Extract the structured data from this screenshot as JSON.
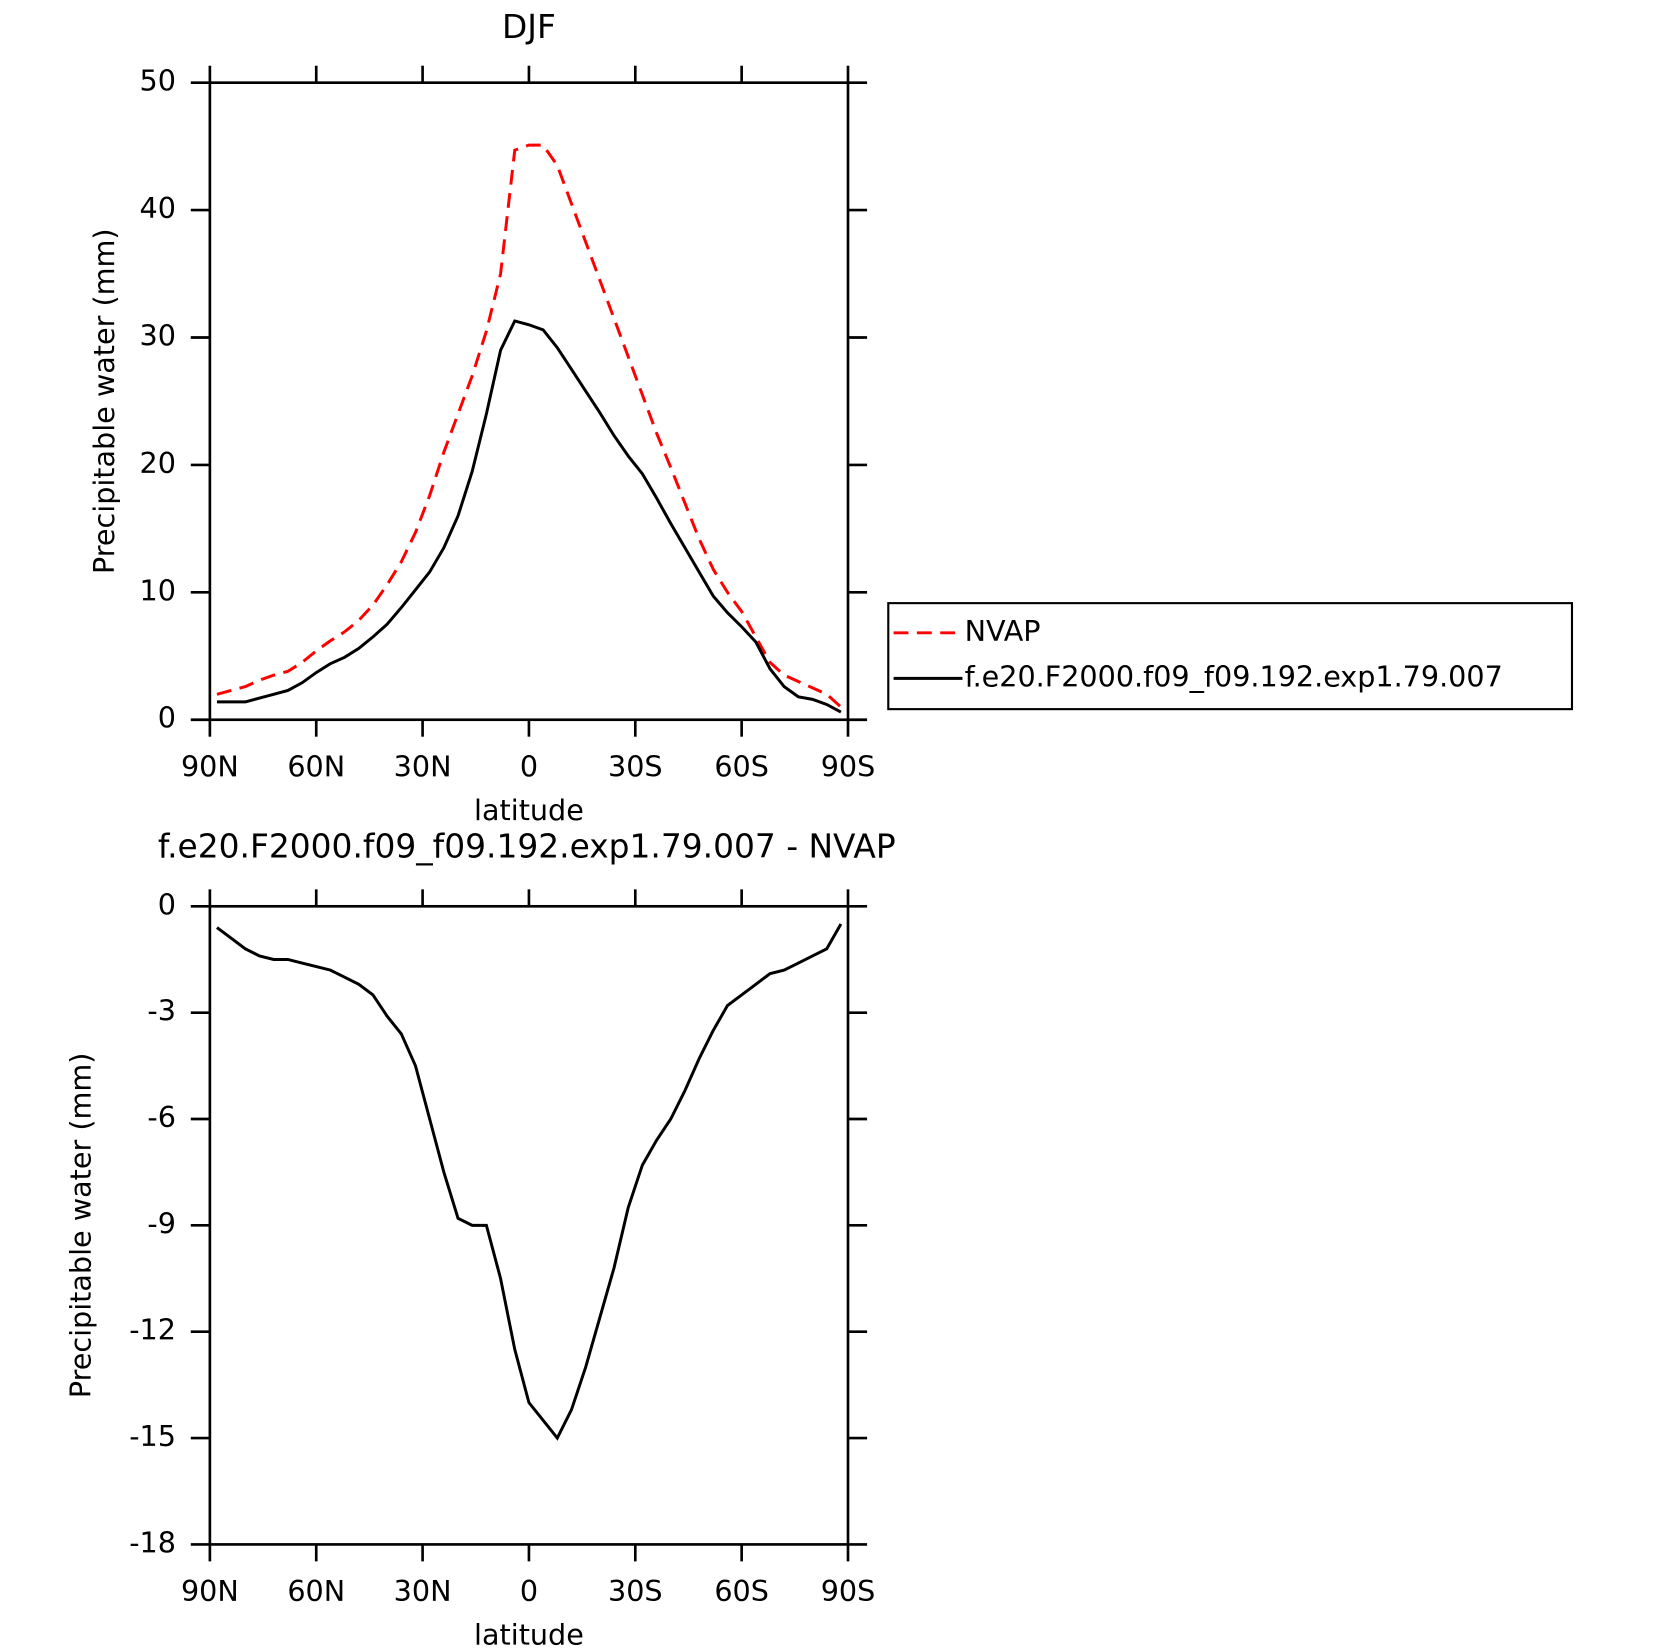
{
  "chart_data": [
    {
      "type": "line",
      "title": "DJF",
      "xlabel": "latitude",
      "ylabel": "Precipitable water (mm)",
      "xlim": [
        90,
        -90
      ],
      "xticks": [
        {
          "value": 90,
          "label": "90N"
        },
        {
          "value": 60,
          "label": "60N"
        },
        {
          "value": 30,
          "label": "30N"
        },
        0,
        {
          "value": -30,
          "label": "30S"
        },
        {
          "value": -60,
          "label": "60S"
        },
        {
          "value": -90,
          "label": "90S"
        }
      ],
      "ylim": [
        0,
        50
      ],
      "yticks": [
        0,
        10,
        20,
        30,
        40,
        50
      ],
      "legend": "right",
      "x": [
        88,
        84,
        80,
        76,
        72,
        68,
        64,
        60,
        56,
        52,
        48,
        44,
        40,
        36,
        32,
        28,
        24,
        20,
        16,
        12,
        8,
        4,
        0,
        -4,
        -8,
        -12,
        -16,
        -20,
        -24,
        -28,
        -32,
        -36,
        -40,
        -44,
        -48,
        -52,
        -56,
        -60,
        -64,
        -68,
        -72,
        -76,
        -80,
        -84,
        -88
      ],
      "series": [
        {
          "name": "NVAP",
          "color": "#ff0000",
          "dashed": true,
          "values": [
            2.0,
            2.3,
            2.6,
            3.1,
            3.5,
            3.8,
            4.5,
            5.4,
            6.2,
            6.9,
            7.8,
            9.0,
            10.6,
            12.4,
            14.7,
            17.6,
            21.0,
            24.0,
            27.0,
            30.5,
            35.0,
            44.7,
            45.1,
            45.1,
            43.5,
            40.5,
            37.5,
            34.5,
            31.5,
            28.5,
            25.5,
            22.5,
            19.8,
            17.0,
            14.2,
            11.8,
            10.0,
            8.5,
            6.5,
            4.5,
            3.5,
            3.0,
            2.5,
            2.0,
            1.0
          ]
        },
        {
          "name": "f.e20.F2000.f09_f09.192.exp1.79.007",
          "color": "#000000",
          "dashed": false,
          "values": [
            1.4,
            1.4,
            1.4,
            1.7,
            2.0,
            2.3,
            2.9,
            3.7,
            4.4,
            4.9,
            5.6,
            6.5,
            7.5,
            8.8,
            10.2,
            11.6,
            13.5,
            16.0,
            19.5,
            24.0,
            29.0,
            31.3,
            31.0,
            30.6,
            29.2,
            27.5,
            25.8,
            24.1,
            22.3,
            20.7,
            19.3,
            17.4,
            15.4,
            13.5,
            11.6,
            9.7,
            8.4,
            7.3,
            6.1,
            4.0,
            2.6,
            1.8,
            1.6,
            1.2,
            0.6
          ]
        }
      ]
    },
    {
      "type": "line",
      "title": "f.e20.F2000.f09_f09.192.exp1.79.007 - NVAP",
      "xlabel": "latitude",
      "ylabel": "Precipitable water (mm)",
      "xlim": [
        90,
        -90
      ],
      "xticks": [
        {
          "value": 90,
          "label": "90N"
        },
        {
          "value": 60,
          "label": "60N"
        },
        {
          "value": 30,
          "label": "30N"
        },
        0,
        {
          "value": -30,
          "label": "30S"
        },
        {
          "value": -60,
          "label": "60S"
        },
        {
          "value": -90,
          "label": "90S"
        }
      ],
      "ylim": [
        -18,
        0
      ],
      "yticks": [
        0,
        -3,
        -6,
        -9,
        -12,
        -15,
        -18
      ],
      "x": [
        88,
        84,
        80,
        76,
        72,
        68,
        64,
        60,
        56,
        52,
        48,
        44,
        40,
        36,
        32,
        28,
        24,
        20,
        16,
        12,
        8,
        4,
        0,
        -4,
        -8,
        -12,
        -16,
        -20,
        -24,
        -28,
        -32,
        -36,
        -40,
        -44,
        -48,
        -52,
        -56,
        -60,
        -64,
        -68,
        -72,
        -76,
        -80,
        -84,
        -88
      ],
      "series": [
        {
          "color": "#000000",
          "dashed": false,
          "values": [
            -0.6,
            -0.9,
            -1.2,
            -1.4,
            -1.5,
            -1.5,
            -1.6,
            -1.7,
            -1.8,
            -2.0,
            -2.2,
            -2.5,
            -3.1,
            -3.6,
            -4.5,
            -6.0,
            -7.5,
            -8.8,
            -9.0,
            -9.0,
            -10.5,
            -12.5,
            -14.0,
            -14.5,
            -15.0,
            -14.2,
            -13.0,
            -11.6,
            -10.2,
            -8.5,
            -7.3,
            -6.6,
            -6.0,
            -5.2,
            -4.3,
            -3.5,
            -2.8,
            -2.5,
            -2.2,
            -1.9,
            -1.8,
            -1.6,
            -1.4,
            -1.2,
            -0.5
          ]
        }
      ]
    }
  ]
}
